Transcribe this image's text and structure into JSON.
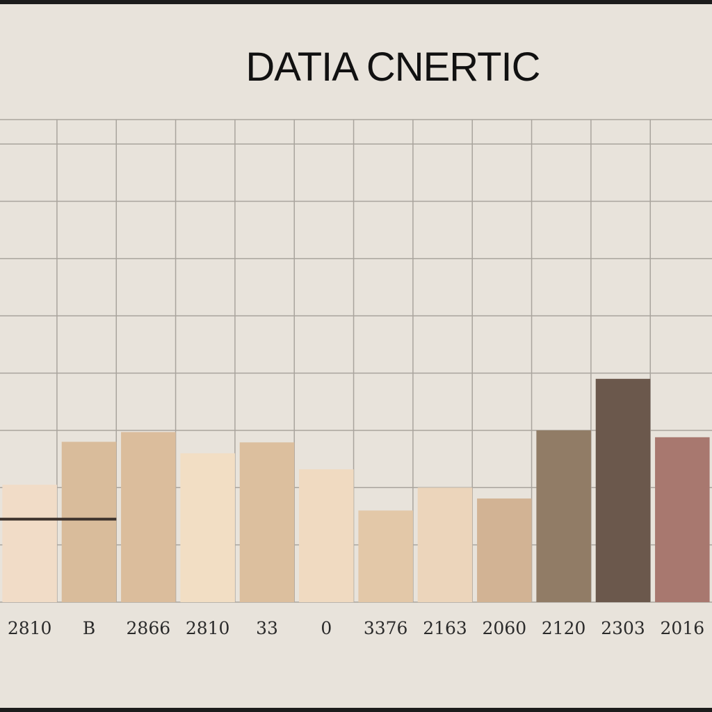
{
  "chart_data": {
    "type": "bar",
    "title": "DATIA CNERTIC",
    "xlabel": "",
    "ylabel": "",
    "categories": [
      "2810",
      "B",
      "2866",
      "2810",
      "33",
      "0",
      "3376",
      "2163",
      "2060",
      "2120",
      "2303",
      "2016"
    ],
    "values": [
      2.05,
      2.8,
      2.97,
      2.6,
      2.79,
      2.32,
      1.6,
      2.0,
      1.81,
      3.0,
      3.9,
      2.88
    ],
    "colors": [
      "#f1dcc7",
      "#d9bc9b",
      "#dbbd9c",
      "#f2dec4",
      "#dcbf9e",
      "#f0dac1",
      "#e3c8a8",
      "#ecd5bb",
      "#d2b394",
      "#917c66",
      "#6b584c",
      "#a8786f"
    ],
    "ylim": [
      0,
      8.5
    ],
    "grid": true,
    "legend": "none",
    "reference_line": {
      "y": 1.45,
      "x_start_category": 0,
      "x_end_category": 1
    }
  }
}
